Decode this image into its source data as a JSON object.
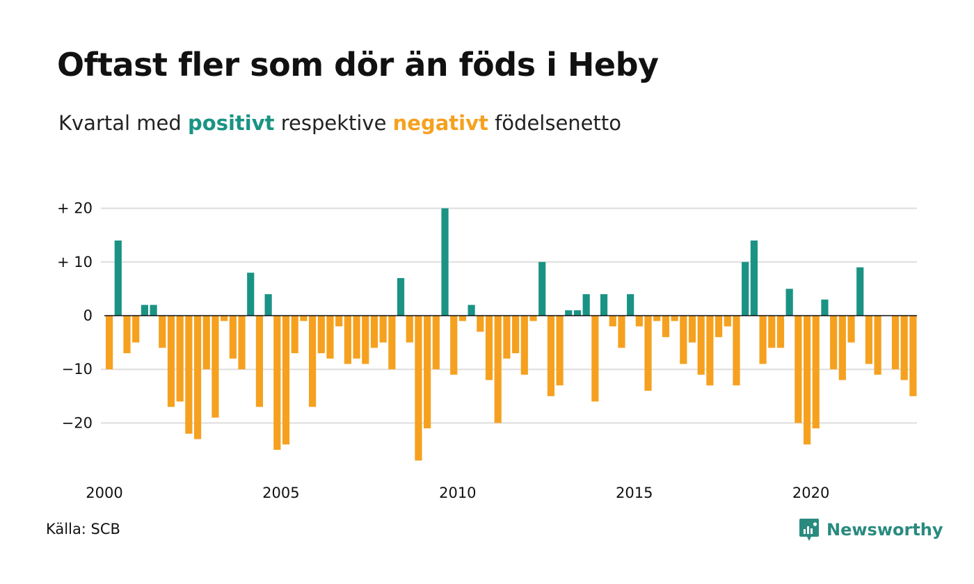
{
  "title": "Oftast fler som dör än föds i Heby",
  "subtitle": {
    "prefix": "Kvartal med",
    "positive": "positivt",
    "middle": "respektive",
    "negative": "negativt",
    "suffix": "födelsenetto"
  },
  "source": "Källa: SCB",
  "brand": {
    "name": "Newsworthy",
    "icon": "newsworthy-logo-icon"
  },
  "colors": {
    "positive": "#1a9384",
    "negative": "#f5a11f",
    "grid": "#dddddd",
    "zero_line": "#111111"
  },
  "chart_data": {
    "type": "bar",
    "title": "Oftast fler som dör än föds i Heby",
    "subtitle": "Kvartal med positivt respektive negativt födelsenetto",
    "xlabel": "",
    "ylabel": "",
    "x_start": 2000,
    "periods_per_year": 4,
    "ylim": [
      -29,
      21
    ],
    "grid": true,
    "yticks": [
      {
        "value": 20,
        "label": "+ 20"
      },
      {
        "value": 10,
        "label": "+ 10"
      },
      {
        "value": 0,
        "label": "0"
      },
      {
        "value": -10,
        "label": "−10"
      },
      {
        "value": -20,
        "label": "−20"
      }
    ],
    "xticks": [
      {
        "value": 2000,
        "label": "2000"
      },
      {
        "value": 2005,
        "label": "2005"
      },
      {
        "value": 2010,
        "label": "2010"
      },
      {
        "value": 2015,
        "label": "2015"
      },
      {
        "value": 2020,
        "label": "2020"
      }
    ],
    "series": [
      {
        "values": [
          -10,
          14,
          -7,
          -5,
          2,
          2,
          -6,
          -17,
          -16,
          -22,
          -23,
          -10,
          -19,
          -1,
          -8,
          -10,
          8,
          -17,
          4,
          -25,
          -24,
          -7,
          -1,
          -17,
          -7,
          -8,
          -2,
          -9,
          -8,
          -9,
          -6,
          -5,
          -10,
          7,
          -5,
          -27,
          -21,
          -10,
          20,
          -11,
          -1,
          2,
          -3,
          -12,
          -20,
          -8,
          -7,
          -11,
          -1,
          10,
          -15,
          -13,
          1,
          1,
          4,
          -16,
          4,
          -2,
          -6,
          4,
          -2,
          -14,
          -1,
          -4,
          -1,
          -9,
          -5,
          -11,
          -13,
          -4,
          -2,
          -13,
          10,
          14,
          -9,
          -6,
          -6,
          5,
          -20,
          -24,
          -21,
          3,
          -10,
          -12,
          -5,
          9,
          -9,
          -11,
          0,
          -10,
          -12,
          -15
        ]
      }
    ]
  }
}
